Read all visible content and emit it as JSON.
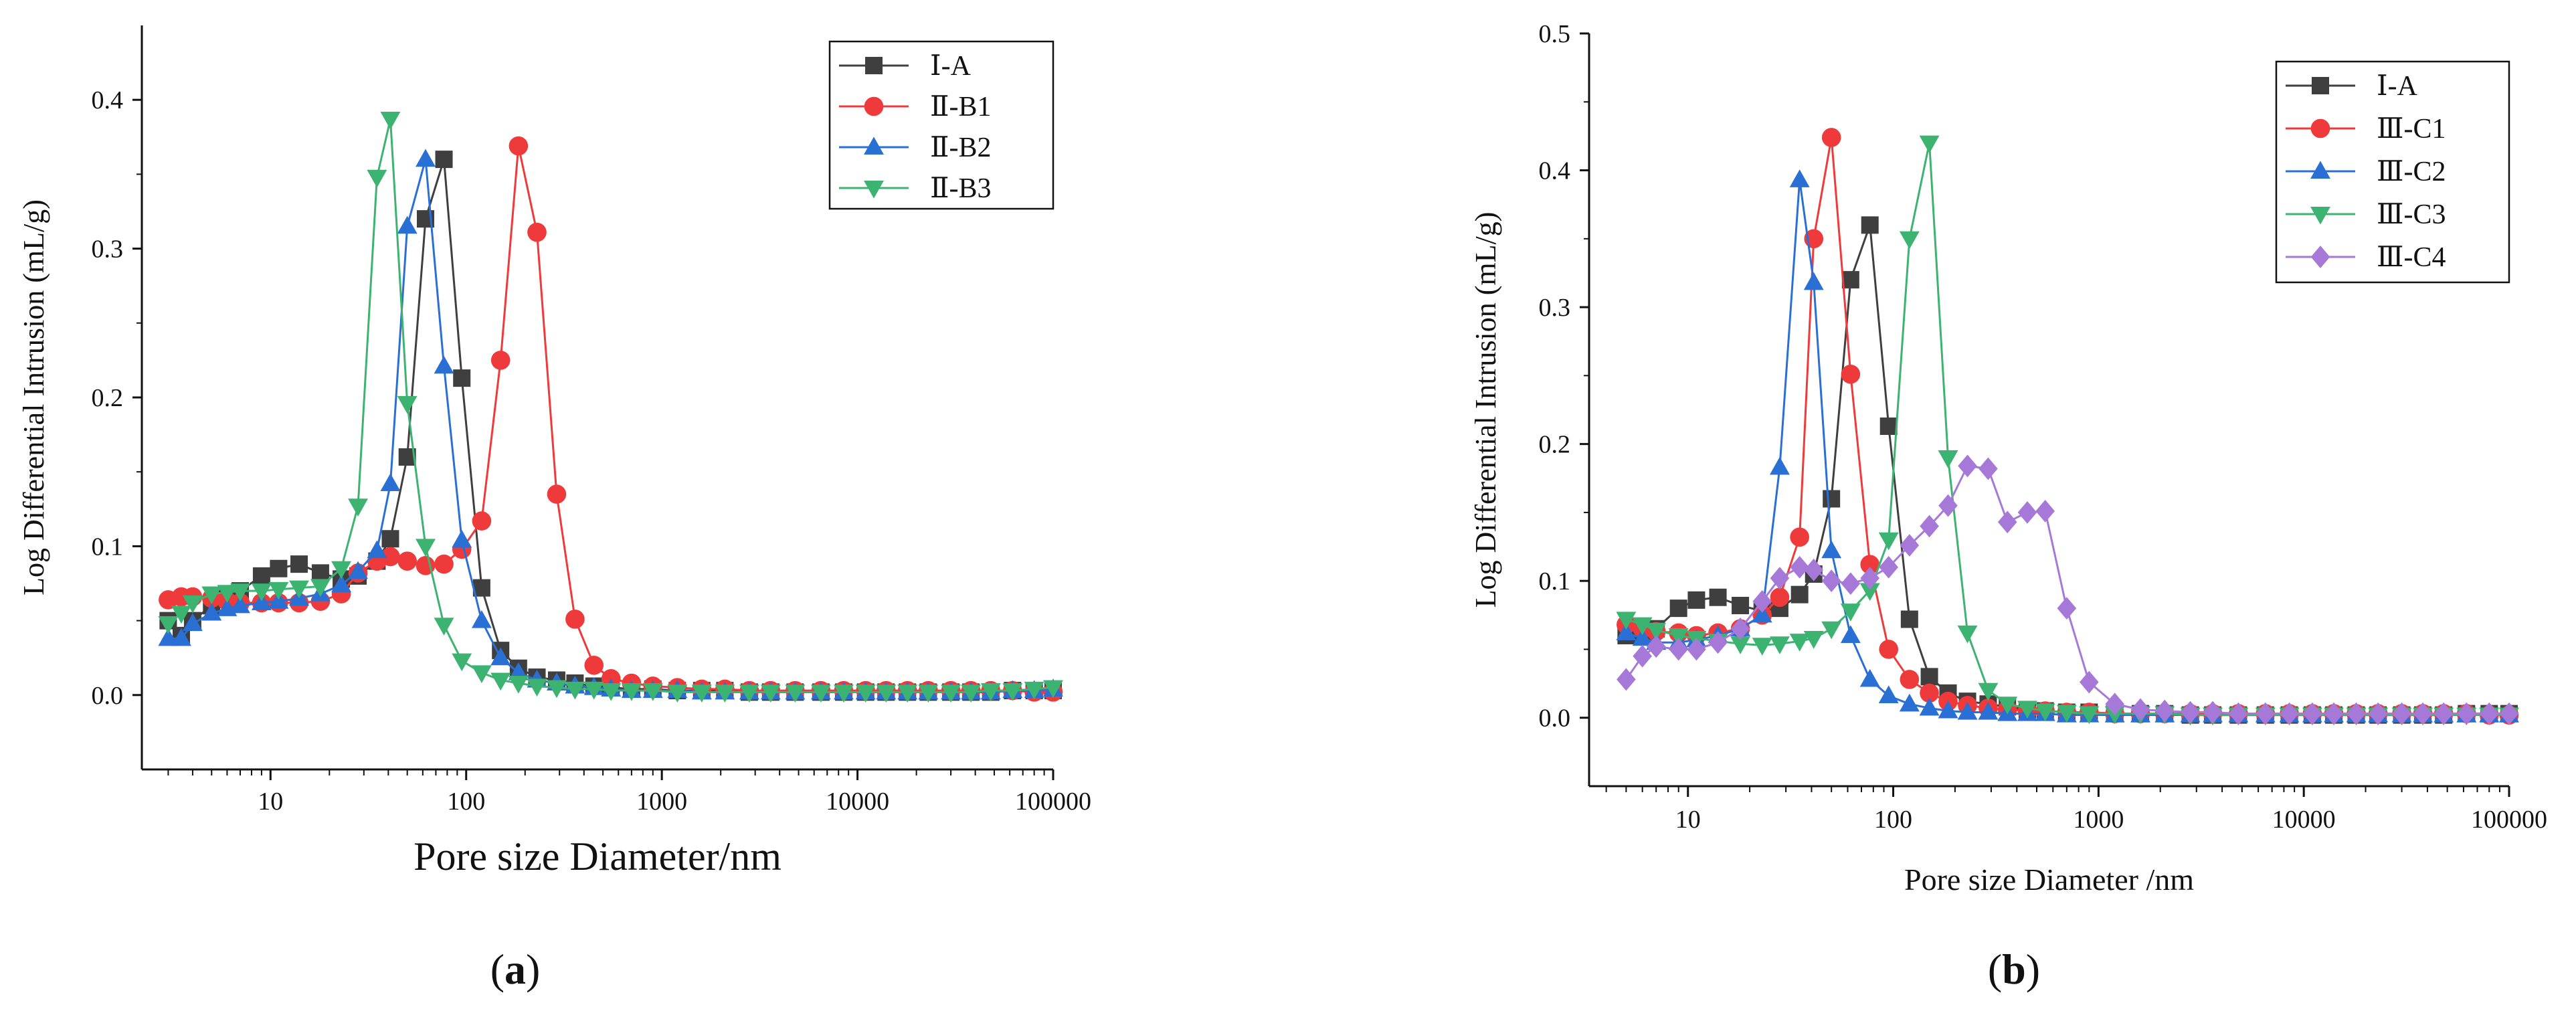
{
  "figure": {
    "panel_a_label": "a",
    "panel_b_label": "b"
  },
  "chart_data": [
    {
      "id": "a",
      "type": "line",
      "title": "",
      "xlabel": "Pore size Diameter/nm",
      "ylabel": "Log Differential Intrusion (mL/g)",
      "xscale": "log",
      "xlim": [
        2.2,
        100000
      ],
      "ylim": [
        -0.05,
        0.45
      ],
      "xticks": [
        10,
        100,
        1000,
        10000,
        100000
      ],
      "xtick_labels": [
        "10",
        "100",
        "1000",
        "10000",
        "100000"
      ],
      "yticks": [
        0.0,
        0.1,
        0.2,
        0.3,
        0.4
      ],
      "ytick_labels": [
        "0.0",
        "0.1",
        "0.2",
        "0.3",
        "0.4"
      ],
      "legend_position": "top-right",
      "series": [
        {
          "name": "Ⅰ-A",
          "color": "#3f3f3f",
          "marker": "square",
          "x": [
            3,
            3.5,
            4,
            5,
            6,
            7,
            9,
            11,
            14,
            18,
            23,
            28,
            35,
            41,
            50,
            62,
            77,
            95,
            120,
            150,
            185,
            230,
            290,
            360,
            450,
            550,
            700,
            900,
            1200,
            1600,
            2100,
            2800,
            3600,
            4800,
            6500,
            8500,
            11000,
            14000,
            18000,
            23000,
            30000,
            38000,
            48000,
            62000,
            80000,
            100000
          ],
          "y": [
            0.05,
            0.04,
            0.05,
            0.06,
            0.065,
            0.07,
            0.08,
            0.085,
            0.088,
            0.082,
            0.078,
            0.08,
            0.09,
            0.105,
            0.16,
            0.32,
            0.36,
            0.213,
            0.072,
            0.03,
            0.018,
            0.012,
            0.01,
            0.008,
            0.006,
            0.005,
            0.004,
            0.004,
            0.003,
            0.003,
            0.003,
            0.002,
            0.002,
            0.002,
            0.002,
            0.002,
            0.002,
            0.002,
            0.002,
            0.002,
            0.002,
            0.002,
            0.002,
            0.003,
            0.003,
            0.003
          ]
        },
        {
          "name": "Ⅱ-B1",
          "color": "#ee3a3a",
          "marker": "circle",
          "x": [
            3,
            3.5,
            4,
            5,
            6,
            7,
            9,
            11,
            14,
            18,
            23,
            28,
            35,
            41,
            50,
            62,
            77,
            95,
            120,
            150,
            185,
            230,
            290,
            360,
            450,
            550,
            700,
            900,
            1200,
            1600,
            2100,
            2800,
            3600,
            4800,
            6500,
            8500,
            11000,
            14000,
            18000,
            23000,
            30000,
            38000,
            48000,
            62000,
            80000,
            100000
          ],
          "y": [
            0.064,
            0.066,
            0.066,
            0.065,
            0.063,
            0.062,
            0.062,
            0.062,
            0.062,
            0.063,
            0.068,
            0.082,
            0.09,
            0.093,
            0.09,
            0.087,
            0.088,
            0.098,
            0.117,
            0.225,
            0.369,
            0.311,
            0.135,
            0.051,
            0.02,
            0.011,
            0.008,
            0.006,
            0.005,
            0.004,
            0.004,
            0.003,
            0.003,
            0.003,
            0.003,
            0.003,
            0.003,
            0.003,
            0.003,
            0.003,
            0.003,
            0.003,
            0.003,
            0.003,
            0.002,
            0.002
          ]
        },
        {
          "name": "Ⅱ-B2",
          "color": "#2a6fd4",
          "marker": "triangle-up",
          "x": [
            3,
            3.5,
            4,
            5,
            6,
            7,
            9,
            11,
            14,
            18,
            23,
            28,
            35,
            41,
            50,
            62,
            77,
            95,
            120,
            150,
            185,
            230,
            290,
            360,
            450,
            550,
            700,
            900,
            1200,
            1600,
            2100,
            2800,
            3600,
            4800,
            6500,
            8500,
            11000,
            14000,
            18000,
            23000,
            30000,
            38000,
            48000,
            62000,
            80000,
            100000
          ],
          "y": [
            0.038,
            0.038,
            0.048,
            0.055,
            0.058,
            0.06,
            0.062,
            0.063,
            0.065,
            0.068,
            0.074,
            0.083,
            0.097,
            0.142,
            0.315,
            0.36,
            0.221,
            0.104,
            0.05,
            0.025,
            0.015,
            0.01,
            0.008,
            0.006,
            0.005,
            0.004,
            0.003,
            0.003,
            0.003,
            0.002,
            0.002,
            0.002,
            0.002,
            0.002,
            0.002,
            0.002,
            0.002,
            0.002,
            0.002,
            0.002,
            0.002,
            0.002,
            0.002,
            0.003,
            0.003,
            0.004
          ]
        },
        {
          "name": "Ⅱ-B3",
          "color": "#3cb371",
          "marker": "triangle-down",
          "x": [
            3,
            3.5,
            4,
            5,
            6,
            7,
            9,
            11,
            14,
            18,
            23,
            28,
            35,
            41,
            50,
            62,
            77,
            95,
            120,
            150,
            185,
            230,
            290,
            360,
            450,
            550,
            700,
            900,
            1200,
            1600,
            2100,
            2800,
            3600,
            4800,
            6500,
            8500,
            11000,
            14000,
            18000,
            23000,
            30000,
            38000,
            48000,
            62000,
            80000,
            100000
          ],
          "y": [
            0.048,
            0.055,
            0.062,
            0.068,
            0.069,
            0.07,
            0.07,
            0.071,
            0.072,
            0.073,
            0.085,
            0.127,
            0.348,
            0.387,
            0.196,
            0.1,
            0.047,
            0.023,
            0.015,
            0.01,
            0.008,
            0.006,
            0.005,
            0.004,
            0.004,
            0.003,
            0.003,
            0.003,
            0.002,
            0.002,
            0.002,
            0.002,
            0.002,
            0.002,
            0.002,
            0.002,
            0.002,
            0.002,
            0.002,
            0.002,
            0.002,
            0.002,
            0.003,
            0.003,
            0.004,
            0.005
          ]
        }
      ]
    },
    {
      "id": "b",
      "type": "line",
      "title": "",
      "xlabel": "Pore size Diameter /nm",
      "ylabel": "Log Differential Intrusion (mL/g)",
      "xscale": "log",
      "xlim": [
        3.3,
        100000
      ],
      "ylim": [
        -0.05,
        0.5
      ],
      "xticks": [
        10,
        100,
        1000,
        10000,
        100000
      ],
      "xtick_labels": [
        "10",
        "100",
        "1000",
        "10000",
        "100000"
      ],
      "yticks": [
        0.0,
        0.1,
        0.2,
        0.3,
        0.4,
        0.5
      ],
      "ytick_labels": [
        "0.0",
        "0.1",
        "0.2",
        "0.3",
        "0.4",
        "0.5"
      ],
      "legend_position": "top-right",
      "series": [
        {
          "name": "Ⅰ-A",
          "color": "#3f3f3f",
          "marker": "square",
          "x": [
            5,
            6,
            7,
            9,
            11,
            14,
            18,
            23,
            28,
            35,
            41,
            50,
            62,
            77,
            95,
            120,
            150,
            185,
            230,
            290,
            360,
            450,
            550,
            700,
            900,
            1200,
            1600,
            2100,
            2800,
            3600,
            4800,
            6500,
            8500,
            11000,
            14000,
            18000,
            23000,
            30000,
            38000,
            48000,
            62000,
            80000,
            100000
          ],
          "y": [
            0.06,
            0.06,
            0.065,
            0.08,
            0.086,
            0.088,
            0.082,
            0.078,
            0.08,
            0.09,
            0.105,
            0.16,
            0.32,
            0.36,
            0.213,
            0.072,
            0.03,
            0.018,
            0.012,
            0.01,
            0.008,
            0.006,
            0.005,
            0.004,
            0.004,
            0.003,
            0.003,
            0.003,
            0.002,
            0.002,
            0.002,
            0.002,
            0.002,
            0.002,
            0.002,
            0.002,
            0.002,
            0.002,
            0.002,
            0.002,
            0.003,
            0.003,
            0.003
          ]
        },
        {
          "name": "Ⅲ-C1",
          "color": "#ee3a3a",
          "marker": "circle",
          "x": [
            5,
            6,
            7,
            9,
            11,
            14,
            18,
            23,
            28,
            35,
            41,
            50,
            62,
            77,
            95,
            120,
            150,
            185,
            230,
            290,
            360,
            450,
            550,
            700,
            900,
            1200,
            1600,
            2100,
            2800,
            3600,
            4800,
            6500,
            8500,
            11000,
            14000,
            18000,
            23000,
            30000,
            38000,
            48000,
            62000,
            80000,
            100000
          ],
          "y": [
            0.068,
            0.065,
            0.063,
            0.062,
            0.06,
            0.062,
            0.065,
            0.075,
            0.088,
            0.132,
            0.35,
            0.424,
            0.251,
            0.112,
            0.05,
            0.028,
            0.018,
            0.012,
            0.009,
            0.007,
            0.006,
            0.005,
            0.005,
            0.004,
            0.004,
            0.003,
            0.003,
            0.003,
            0.003,
            0.003,
            0.003,
            0.003,
            0.003,
            0.003,
            0.003,
            0.003,
            0.003,
            0.003,
            0.003,
            0.003,
            0.003,
            0.002,
            0.002
          ]
        },
        {
          "name": "Ⅲ-C2",
          "color": "#2a6fd4",
          "marker": "triangle-up",
          "x": [
            5,
            6,
            7,
            9,
            11,
            14,
            18,
            23,
            28,
            35,
            41,
            50,
            62,
            77,
            95,
            120,
            150,
            185,
            230,
            290,
            360,
            450,
            550,
            700,
            900,
            1200,
            1600,
            2100,
            2800,
            3600,
            4800,
            6500,
            8500,
            11000,
            14000,
            18000,
            23000,
            30000,
            38000,
            48000,
            62000,
            80000,
            100000
          ],
          "y": [
            0.062,
            0.058,
            0.055,
            0.055,
            0.057,
            0.06,
            0.065,
            0.075,
            0.183,
            0.393,
            0.318,
            0.122,
            0.06,
            0.028,
            0.016,
            0.01,
            0.007,
            0.005,
            0.004,
            0.004,
            0.003,
            0.003,
            0.003,
            0.002,
            0.002,
            0.002,
            0.002,
            0.002,
            0.002,
            0.002,
            0.002,
            0.002,
            0.002,
            0.002,
            0.002,
            0.002,
            0.002,
            0.002,
            0.002,
            0.002,
            0.002,
            0.002,
            0.002
          ]
        },
        {
          "name": "Ⅲ-C3",
          "color": "#3cb371",
          "marker": "triangle-down",
          "x": [
            5,
            6,
            7,
            9,
            11,
            14,
            18,
            23,
            28,
            35,
            41,
            50,
            62,
            77,
            95,
            120,
            150,
            185,
            230,
            290,
            360,
            450,
            550,
            700,
            900,
            1200,
            1600,
            2100,
            2800,
            3600,
            4800,
            6500,
            8500,
            11000,
            14000,
            18000,
            23000,
            30000,
            38000,
            48000,
            62000,
            80000,
            100000
          ],
          "y": [
            0.072,
            0.068,
            0.064,
            0.06,
            0.058,
            0.056,
            0.054,
            0.053,
            0.054,
            0.056,
            0.058,
            0.065,
            0.078,
            0.093,
            0.13,
            0.35,
            0.42,
            0.19,
            0.062,
            0.02,
            0.01,
            0.007,
            0.005,
            0.004,
            0.003,
            0.003,
            0.003,
            0.003,
            0.002,
            0.002,
            0.002,
            0.002,
            0.002,
            0.002,
            0.002,
            0.002,
            0.002,
            0.002,
            0.002,
            0.002,
            0.002,
            0.002,
            0.002
          ]
        },
        {
          "name": "Ⅲ-C4",
          "color": "#a679d8",
          "marker": "diamond",
          "x": [
            5,
            6,
            7,
            9,
            11,
            14,
            18,
            23,
            28,
            35,
            41,
            50,
            62,
            77,
            95,
            120,
            150,
            185,
            230,
            290,
            360,
            450,
            550,
            700,
            900,
            1200,
            1600,
            2100,
            2800,
            3600,
            4800,
            6500,
            8500,
            11000,
            14000,
            18000,
            23000,
            30000,
            38000,
            48000,
            62000,
            80000,
            100000
          ],
          "y": [
            0.028,
            0.045,
            0.052,
            0.05,
            0.05,
            0.055,
            0.065,
            0.085,
            0.102,
            0.11,
            0.108,
            0.1,
            0.098,
            0.102,
            0.11,
            0.126,
            0.14,
            0.155,
            0.184,
            0.182,
            0.143,
            0.15,
            0.151,
            0.08,
            0.026,
            0.01,
            0.006,
            0.005,
            0.004,
            0.004,
            0.003,
            0.003,
            0.003,
            0.003,
            0.003,
            0.003,
            0.003,
            0.003,
            0.003,
            0.003,
            0.003,
            0.003,
            0.003
          ]
        }
      ]
    }
  ]
}
